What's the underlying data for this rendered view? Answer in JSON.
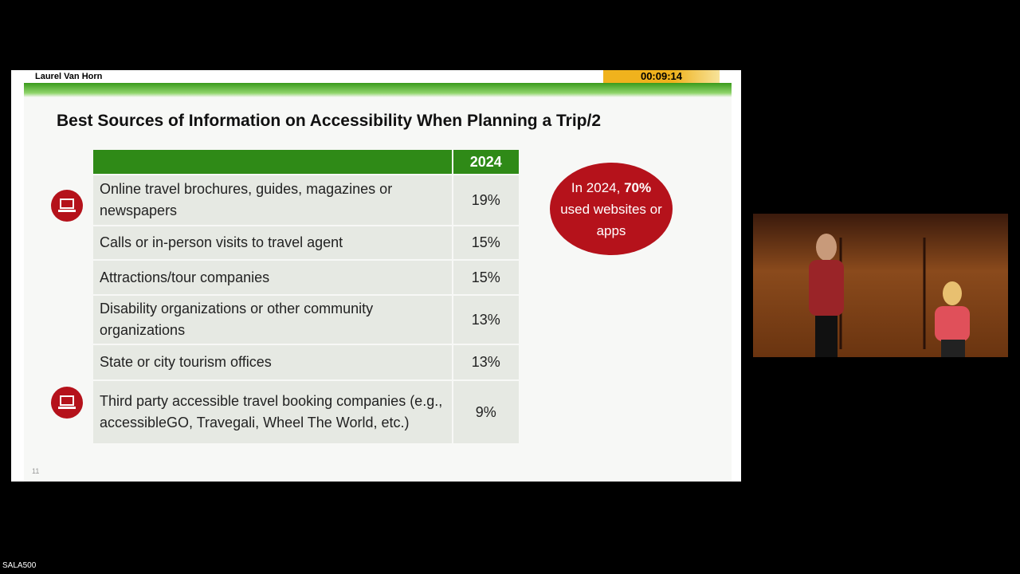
{
  "header": {
    "presenter": "Laurel Van Horn",
    "timer": "00:09:14"
  },
  "slide": {
    "title": "Best Sources of Information on Accessibility When Planning a Trip/2",
    "table": {
      "header": [
        "",
        "2024"
      ],
      "rows": [
        [
          "Online travel brochures, guides, magazines or newspapers",
          "19%"
        ],
        [
          "Calls or in-person visits to travel agent",
          "15%"
        ],
        [
          "Attractions/tour companies",
          "15%"
        ],
        [
          "Disability organizations or other community organizations",
          "13%"
        ],
        [
          "State or city tourism offices",
          "13%"
        ],
        [
          "Third party accessible travel booking companies (e.g.,  accessibleGO, Travegali, Wheel The World, etc.)",
          "9%"
        ]
      ]
    },
    "callout": {
      "prefix": "In 2024,",
      "highlight": "70%",
      "suffix": "used websites or apps"
    },
    "page_number": "11"
  },
  "footer": {
    "room": "SALA500"
  }
}
